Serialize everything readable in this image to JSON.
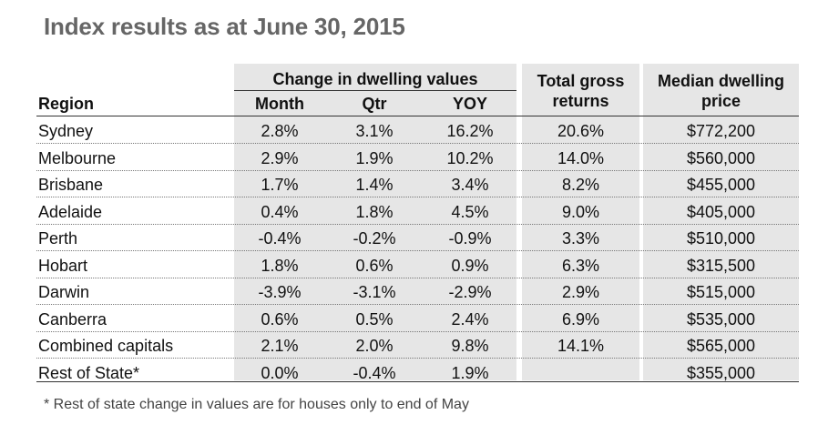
{
  "title": "Index results as at June 30, 2015",
  "headers": {
    "region": "Region",
    "change_group": "Change in dwelling values",
    "month": "Month",
    "qtr": "Qtr",
    "yoy": "YOY",
    "gross_line1": "Total gross",
    "gross_line2": "returns",
    "price_line1": "Median dwelling",
    "price_line2": "price"
  },
  "rows": [
    {
      "region": "Sydney",
      "month": "2.8%",
      "qtr": "3.1%",
      "yoy": "16.2%",
      "gross": "20.6%",
      "price": "$772,200"
    },
    {
      "region": "Melbourne",
      "month": "2.9%",
      "qtr": "1.9%",
      "yoy": "10.2%",
      "gross": "14.0%",
      "price": "$560,000"
    },
    {
      "region": "Brisbane",
      "month": "1.7%",
      "qtr": "1.4%",
      "yoy": "3.4%",
      "gross": "8.2%",
      "price": "$455,000"
    },
    {
      "region": "Adelaide",
      "month": "0.4%",
      "qtr": "1.8%",
      "yoy": "4.5%",
      "gross": "9.0%",
      "price": "$405,000"
    },
    {
      "region": "Perth",
      "month": "-0.4%",
      "qtr": "-0.2%",
      "yoy": "-0.9%",
      "gross": "3.3%",
      "price": "$510,000"
    },
    {
      "region": "Hobart",
      "month": "1.8%",
      "qtr": "0.6%",
      "yoy": "0.9%",
      "gross": "6.3%",
      "price": "$315,500"
    },
    {
      "region": "Darwin",
      "month": "-3.9%",
      "qtr": "-3.1%",
      "yoy": "-2.9%",
      "gross": "2.9%",
      "price": "$515,000"
    },
    {
      "region": "Canberra",
      "month": "0.6%",
      "qtr": "0.5%",
      "yoy": "2.4%",
      "gross": "6.9%",
      "price": "$535,000"
    },
    {
      "region": "Combined capitals",
      "month": "2.1%",
      "qtr": "2.0%",
      "yoy": "9.8%",
      "gross": "14.1%",
      "price": "$565,000"
    },
    {
      "region": "Rest of State*",
      "month": "0.0%",
      "qtr": "-0.4%",
      "yoy": "1.9%",
      "gross": "",
      "price": "$355,000"
    }
  ],
  "footnote": "* Rest of state change in values are for houses only to end of May",
  "colors": {
    "title": "#666666",
    "panel": "#e6e6e6"
  },
  "chart_data": {
    "type": "table",
    "title": "Index results as at June 30, 2015",
    "columns": [
      "Region",
      "Month",
      "Qtr",
      "YOY",
      "Total gross returns",
      "Median dwelling price"
    ],
    "column_group": "Change in dwelling values",
    "rows": [
      [
        "Sydney",
        "2.8%",
        "3.1%",
        "16.2%",
        "20.6%",
        "$772,200"
      ],
      [
        "Melbourne",
        "2.9%",
        "1.9%",
        "10.2%",
        "14.0%",
        "$560,000"
      ],
      [
        "Brisbane",
        "1.7%",
        "1.4%",
        "3.4%",
        "8.2%",
        "$455,000"
      ],
      [
        "Adelaide",
        "0.4%",
        "1.8%",
        "4.5%",
        "9.0%",
        "$405,000"
      ],
      [
        "Perth",
        "-0.4%",
        "-0.2%",
        "-0.9%",
        "3.3%",
        "$510,000"
      ],
      [
        "Hobart",
        "1.8%",
        "0.6%",
        "0.9%",
        "6.3%",
        "$315,500"
      ],
      [
        "Darwin",
        "-3.9%",
        "-3.1%",
        "-2.9%",
        "2.9%",
        "$515,000"
      ],
      [
        "Canberra",
        "0.6%",
        "0.5%",
        "2.4%",
        "6.9%",
        "$535,000"
      ],
      [
        "Combined capitals",
        "2.1%",
        "2.0%",
        "9.8%",
        "14.1%",
        "$565,000"
      ],
      [
        "Rest of State*",
        "0.0%",
        "-0.4%",
        "1.9%",
        "",
        "$355,000"
      ]
    ]
  }
}
